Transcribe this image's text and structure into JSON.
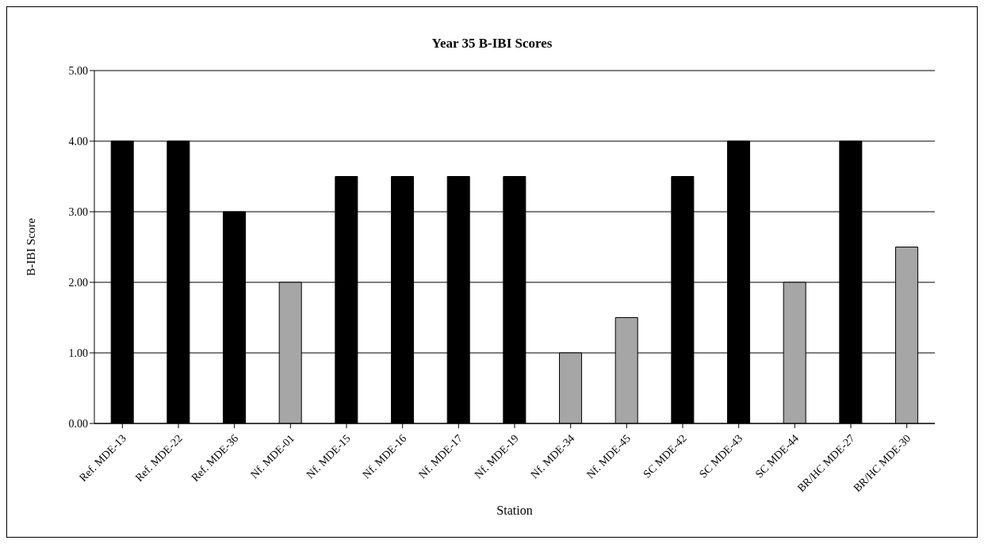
{
  "chart_data": {
    "type": "bar",
    "title": "Year 35 B-IBI Scores",
    "xlabel": "Station",
    "ylabel": "B-IBI Score",
    "categories": [
      "Ref. MDE-13",
      "Ref. MDE-22",
      "Ref. MDE-36",
      "Nf. MDE-01",
      "Nf. MDE-15",
      "Nf. MDE-16",
      "Nf. MDE-17",
      "Nf. MDE-19",
      "Nf. MDE-34",
      "Nf. MDE-45",
      "SC MDE-42",
      "SC MDE-43",
      "SC MDE-44",
      "BR/HC MDE-27",
      "BR/HC MDE-30"
    ],
    "values": [
      4,
      4,
      3,
      2,
      3.5,
      3.5,
      3.5,
      3.5,
      1,
      1.5,
      3.5,
      4,
      2,
      4,
      2.5
    ],
    "colors": [
      "#000000",
      "#000000",
      "#000000",
      "#a6a6a6",
      "#000000",
      "#000000",
      "#000000",
      "#000000",
      "#a6a6a6",
      "#a6a6a6",
      "#000000",
      "#000000",
      "#a6a6a6",
      "#000000",
      "#a6a6a6"
    ],
    "ylim": [
      0,
      5
    ],
    "yticks": [
      {
        "value": 0,
        "label": "0.00"
      },
      {
        "value": 1,
        "label": "1.00"
      },
      {
        "value": 2,
        "label": "2.00"
      },
      {
        "value": 3,
        "label": "3.00"
      },
      {
        "value": 4,
        "label": "4.00"
      },
      {
        "value": 5,
        "label": "5.00"
      }
    ],
    "grid": "y",
    "legend": false
  }
}
